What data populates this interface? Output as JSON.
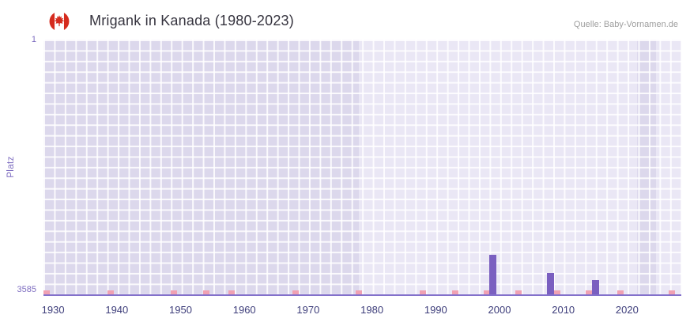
{
  "header": {
    "title": "Mrigank in Kanada (1980-2023)",
    "source": "Quelle: Baby-Vornamen.de"
  },
  "chart_data": {
    "type": "bar",
    "title": "Mrigank in Kanada (1980-2023)",
    "xlabel": "",
    "ylabel": "Platz",
    "y_axis": {
      "ticks": [
        "1",
        "3585"
      ],
      "min": 1,
      "max": 3585,
      "inverted": true
    },
    "x_axis": {
      "ticks": [
        1930,
        1940,
        1950,
        1960,
        1970,
        1980,
        1990,
        2000,
        2010,
        2020
      ],
      "domain": [
        1928.5,
        2028.5
      ]
    },
    "bars": [
      {
        "year": 1999,
        "rank": 3030
      },
      {
        "year": 2008,
        "rank": 3280
      },
      {
        "year": 2015,
        "rank": 3390
      }
    ],
    "baseline_marker_years": [
      1929,
      1939,
      1949,
      1954,
      1958,
      1968,
      1978,
      1988,
      1993,
      1998,
      2003,
      2009,
      2014,
      2019,
      2027
    ],
    "background_bands": [
      {
        "from": 1928.5,
        "to": 1978
      },
      {
        "from": 2021.5,
        "to": 2024.5
      }
    ],
    "legend": null,
    "grid": true,
    "colors": {
      "bar": "#7a5fc0",
      "marker": "#f0a1b3",
      "plot_bg": "#eae7f5",
      "band": "#dcd8ec",
      "grid": "#ffffff",
      "axis_line": "#8371cb",
      "x_tick_text": "#3d3d7a",
      "y_tick_text": "#7d6cc0",
      "title_text": "#36343f",
      "source_text": "#9e9e9e",
      "flag_red": "#d52b1e"
    }
  }
}
